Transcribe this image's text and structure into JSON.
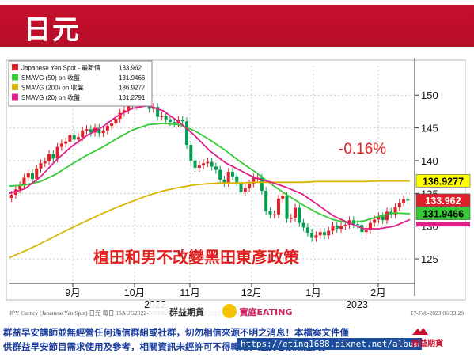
{
  "header": {
    "title": "日元"
  },
  "chart_data": {
    "type": "line",
    "x_axis": {
      "month_labels": [
        "9月",
        "10月",
        "11月",
        "12月",
        "1月",
        "2月"
      ],
      "year_labels": [
        "2022",
        "2023"
      ]
    },
    "y_axis": {
      "ticks": [
        125,
        130,
        135,
        140,
        145,
        150
      ],
      "ylim": [
        121.5,
        154.5
      ],
      "position": "right"
    },
    "grid": true,
    "legend_position": "top-left",
    "series": [
      {
        "name": "Japanese Yen Spot - 最新價",
        "kind": "candlestick",
        "last": "133.962",
        "color": "#e0202a",
        "values": [
          134.8,
          135.6,
          136.2,
          137.4,
          138.1,
          137.2,
          138.8,
          139.6,
          139.9,
          141.0,
          140.3,
          142.1,
          142.6,
          142.9,
          143.9,
          143.2,
          143.6,
          144.6,
          144.8,
          144.3,
          145.0,
          144.2,
          144.6,
          145.3,
          145.7,
          146.4,
          147.3,
          147.7,
          148.7,
          148.4,
          149.6,
          150.0,
          149.3,
          147.9,
          148.2,
          146.7,
          146.8,
          146.3,
          145.9,
          145.7,
          146.2,
          146.0,
          142.4,
          140.0,
          138.9,
          139.3,
          139.6,
          139.8,
          139.1,
          138.6,
          137.1,
          136.6,
          138.3,
          137.6,
          136.7,
          135.2,
          135.8,
          136.5,
          137.4,
          137.4,
          135.4,
          132.3,
          131.8,
          131.8,
          134.2,
          134.6,
          131.1,
          131.3,
          132.8,
          130.5,
          129.8,
          129.0,
          128.2,
          128.6,
          129.1,
          128.6,
          129.3,
          130.1,
          129.6,
          130.0,
          130.2,
          130.9,
          130.3,
          130.2,
          129.1,
          129.4,
          130.5,
          131.0,
          131.5,
          130.9,
          132.2,
          131.8,
          132.9,
          133.6,
          134.1,
          133.9
        ],
        "highlight_color": "#00a050"
      },
      {
        "name": "SMAVG (50)  on 收盤",
        "last": "131.9466",
        "color": "#33cc33",
        "values": [
          136.1,
          136.3,
          136.8,
          137.9,
          139.4,
          140.8,
          142.0,
          143.4,
          144.7,
          145.5,
          145.7,
          145.5,
          144.6,
          143.2,
          141.6,
          139.8,
          138.2,
          136.4,
          134.8,
          133.3,
          132.0,
          131.0,
          130.5,
          130.8,
          131.5,
          132.0,
          131.9
        ]
      },
      {
        "name": "SMAVG (200)  on 收盤",
        "last": "136.9277",
        "color": "#d9b400",
        "values": [
          125.2,
          126.2,
          127.3,
          128.5,
          129.7,
          130.8,
          131.9,
          132.9,
          133.8,
          134.7,
          135.4,
          135.9,
          136.3,
          136.5,
          136.6,
          136.6,
          136.7,
          136.7,
          136.7,
          136.7,
          136.8,
          136.8,
          136.8,
          136.8,
          136.9,
          136.9,
          136.9
        ]
      },
      {
        "name": "SMAVG (20)  on 收盤",
        "last": "131.2791",
        "color": "#e0208a",
        "values": [
          135.0,
          135.7,
          137.5,
          140.0,
          142.1,
          143.8,
          145.1,
          146.8,
          148.0,
          148.4,
          147.6,
          145.9,
          143.9,
          141.5,
          139.7,
          138.5,
          137.3,
          136.7,
          135.9,
          134.9,
          133.3,
          131.6,
          130.5,
          129.6,
          129.6,
          130.0,
          131.0
        ]
      }
    ],
    "annotations": [
      "-0.16%",
      "植田和男不改變黑田東彥政策"
    ],
    "source_text": "JPY Curncy (Japanese Yen Spot) 日元  每日 15AUG2022-17FEB2023  Copyright© 2023 Bloomberg Finance L.P.",
    "timestamp": "17-Feb-2023 06:33:29",
    "brand_text": [
      "群益期貨",
      "寶庭EATING"
    ]
  },
  "footer": {
    "line1": "群益早安講師並無經營任何通信群組或社群，切勿相信來源不明之消息！本檔案文件僅",
    "line2": "供群益早安節目需求使用及參考，相關資訊未經許可不得轉用，違反者依法追究。",
    "url": "https://eting1688.pixnet.net/album",
    "logo_text": "群益期貨"
  }
}
